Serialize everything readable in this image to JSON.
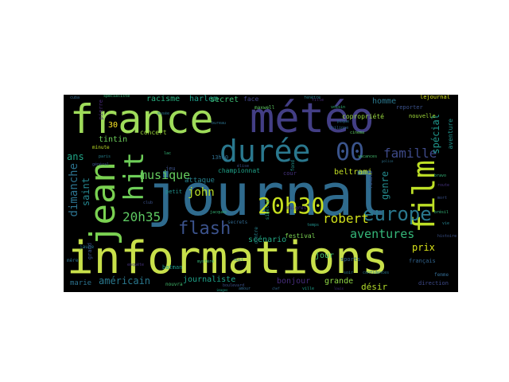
{
  "words": [
    {
      "text": "journal",
      "color": "#2f6b8e"
    },
    {
      "text": "informations",
      "color": "#c8e04a"
    },
    {
      "text": "france",
      "color": "#9fdc5a"
    },
    {
      "text": "météo",
      "color": "#433e85"
    },
    {
      "text": "jean",
      "color": "#7ad151"
    },
    {
      "text": "durée",
      "color": "#2a788e"
    },
    {
      "text": "film",
      "color": "#bddf26"
    },
    {
      "text": "hit",
      "color": "#6ece58"
    },
    {
      "text": "00",
      "color": "#3a548c"
    },
    {
      "text": "20h30",
      "color": "#c8e020"
    },
    {
      "text": "europe",
      "color": "#2a788e"
    },
    {
      "text": "flash",
      "color": "#3b528b"
    },
    {
      "text": "famille",
      "color": "#3e4a89"
    },
    {
      "text": "robert",
      "color": "#d2e21b"
    },
    {
      "text": "aventures",
      "color": "#35b779"
    },
    {
      "text": "musique",
      "color": "#65cb5e"
    },
    {
      "text": "john",
      "color": "#b8de29"
    },
    {
      "text": "20h35",
      "color": "#5ec962"
    },
    {
      "text": "dimanche",
      "color": "#2c728e"
    },
    {
      "text": "saint",
      "color": "#25858e"
    },
    {
      "text": "ans",
      "color": "#20a486"
    },
    {
      "text": "genre",
      "color": "#238a8d"
    },
    {
      "text": "prix",
      "color": "#d8e219"
    },
    {
      "text": "spécial",
      "color": "#1f968b"
    },
    {
      "text": "homme",
      "color": "#2a788e"
    },
    {
      "text": "beltrami",
      "color": "#c2df23"
    },
    {
      "text": "racisme",
      "color": "#29af7f"
    },
    {
      "text": "harlem",
      "color": "#1f9e89"
    },
    {
      "text": "secret",
      "color": "#3dbc74"
    },
    {
      "text": "attaque",
      "color": "#26828e"
    },
    {
      "text": "concert",
      "color": "#9dd93b"
    },
    {
      "text": "tintin",
      "color": "#6ccd5a"
    },
    {
      "text": "championnat",
      "color": "#1fa188"
    },
    {
      "text": "festival",
      "color": "#7ad151"
    },
    {
      "text": "scénario",
      "color": "#22a884"
    },
    {
      "text": "jour",
      "color": "#48c16e"
    },
    {
      "text": "américain",
      "color": "#2a788e"
    },
    {
      "text": "journaliste",
      "color": "#1fa188"
    },
    {
      "text": "bonjour",
      "color": "#472d7b"
    },
    {
      "text": "grande",
      "color": "#8fd744"
    },
    {
      "text": "désir",
      "color": "#b5de2b"
    },
    {
      "text": "marie",
      "color": "#2c728e"
    },
    {
      "text": "nouvelle",
      "color": "#a0da39"
    },
    {
      "text": "copropriété",
      "color": "#98d83e"
    },
    {
      "text": "maxwell",
      "color": "#5ec962"
    },
    {
      "text": "13h00",
      "color": "#2e6e8e"
    },
    {
      "text": "aventure",
      "color": "#20928c"
    },
    {
      "text": "lejournal",
      "color": "#d5e21a"
    },
    {
      "text": "reporter",
      "color": "#3b528b"
    },
    {
      "text": "français",
      "color": "#32648e"
    },
    {
      "text": "direction",
      "color": "#3e4a89"
    },
    {
      "text": "sports",
      "color": "#31668e"
    },
    {
      "text": "30",
      "color": "#fde725"
    },
    {
      "text": "batman",
      "color": "#1f9a8a"
    },
    {
      "text": "petit",
      "color": "#21918c"
    },
    {
      "text": "jeu",
      "color": "#3b528b"
    },
    {
      "text": "cour",
      "color": "#46337e"
    },
    {
      "text": "face",
      "color": "#414487"
    },
    {
      "text": "minute",
      "color": "#bddf26"
    },
    {
      "text": "jaune",
      "color": "#2a788e"
    },
    {
      "text": "femme",
      "color": "#31688e"
    },
    {
      "text": "grand",
      "color": "#3b528b"
    },
    {
      "text": "mère",
      "color": "#2c728e"
    },
    {
      "text": "contre",
      "color": "#26828e"
    },
    {
      "text": "nouvra",
      "color": "#44bf70"
    },
    {
      "text": "secrets",
      "color": "#31688e"
    },
    {
      "text": "sibelle",
      "color": "#1f9e89"
    },
    {
      "text": "ronald",
      "color": "#3b528b"
    },
    {
      "text": "pierre",
      "color": "#482878"
    },
    {
      "text": "fond",
      "color": "#21918c"
    },
    {
      "text": "maigret",
      "color": "#46327e"
    },
    {
      "text": "général",
      "color": "#3b528b"
    },
    {
      "text": "cinéma",
      "color": "#5ec962"
    },
    {
      "text": "lac",
      "color": "#35b779"
    },
    {
      "text": "nuit",
      "color": "#2a788e"
    },
    {
      "text": "élise",
      "color": "#3b528b"
    },
    {
      "text": "spécialiste",
      "color": "#35b779"
    },
    {
      "text": "fille",
      "color": "#472d7b"
    },
    {
      "text": "pique",
      "color": "#2c728e"
    },
    {
      "text": "philippe",
      "color": "#31688e"
    },
    {
      "text": "voisin",
      "color": "#35b779"
    },
    {
      "text": "fenêtre",
      "color": "#26828e"
    },
    {
      "text": "cuba",
      "color": "#31688e"
    },
    {
      "text": "histoire",
      "color": "#3b528b"
    },
    {
      "text": "brésil",
      "color": "#35b779"
    },
    {
      "text": "route",
      "color": "#46337e"
    },
    {
      "text": "vie",
      "color": "#26828e"
    },
    {
      "text": "mort",
      "color": "#3b528b"
    },
    {
      "text": "ville",
      "color": "#1f9e89"
    },
    {
      "text": "amour",
      "color": "#31688e"
    },
    {
      "text": "jacques",
      "color": "#35b779"
    },
    {
      "text": "enquête",
      "color": "#46337e"
    },
    {
      "text": "musée",
      "color": "#2a788e"
    },
    {
      "text": "bureau",
      "color": "#2c728e"
    },
    {
      "text": "paris",
      "color": "#26828e"
    },
    {
      "text": "club",
      "color": "#3b528b"
    },
    {
      "text": "temps",
      "color": "#21918c"
    },
    {
      "text": "vacances",
      "color": "#44bf70"
    },
    {
      "text": "soir",
      "color": "#2a788e"
    },
    {
      "text": "mystère",
      "color": "#35b779"
    },
    {
      "text": "boulevard",
      "color": "#3b528b"
    },
    {
      "text": "images",
      "color": "#1f9e89"
    },
    {
      "text": "confidences",
      "color": "#2a788e"
    },
    {
      "text": "louis",
      "color": "#46337e"
    },
    {
      "text": "chef",
      "color": "#31688e"
    },
    {
      "text": "bravo",
      "color": "#35b779"
    },
    {
      "text": "police",
      "color": "#2c728e"
    }
  ]
}
